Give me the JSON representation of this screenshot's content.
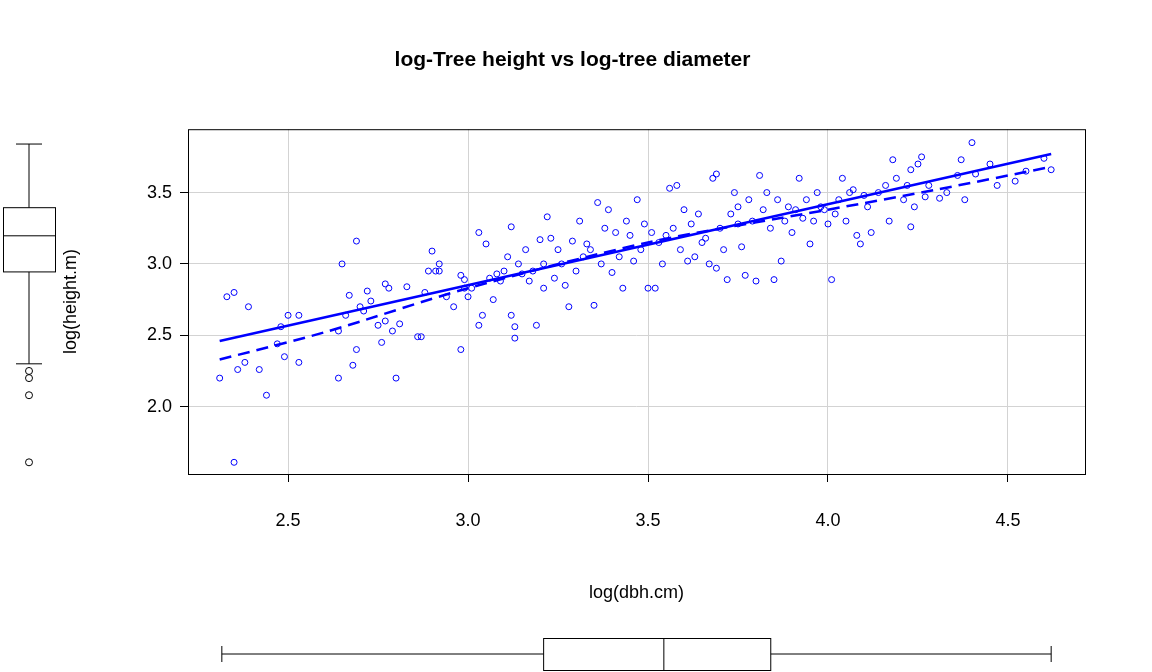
{
  "chart_data": {
    "type": "scatter",
    "title": "log-Tree height vs log-tree diameter",
    "x_label": "log(dbh.cm)",
    "y_label": "log(height.m)",
    "xlim": [
      2.222,
      4.714
    ],
    "ylim": [
      1.528,
      3.944
    ],
    "xticks": [
      2.5,
      {
        "value": 3,
        "label": "3.0"
      },
      3.5,
      {
        "value": 4,
        "label": "4.0"
      },
      4.5
    ],
    "yticks": [
      {
        "value": 2,
        "label": "2.0"
      },
      2.5,
      {
        "value": 3,
        "label": "3.0"
      },
      3.5
    ],
    "grid": true,
    "series": [
      {
        "type": "scatter",
        "marker": "circle",
        "color": "#0000ff",
        "x": [
          2.31,
          2.33,
          2.35,
          2.35,
          2.36,
          2.38,
          2.39,
          2.42,
          2.44,
          2.47,
          2.48,
          2.49,
          2.5,
          2.53,
          2.53,
          2.64,
          2.64,
          2.65,
          2.66,
          2.67,
          2.68,
          2.69,
          2.69,
          2.7,
          2.71,
          2.72,
          2.73,
          2.75,
          2.76,
          2.77,
          2.77,
          2.78,
          2.79,
          2.8,
          2.81,
          2.83,
          2.86,
          2.87,
          2.88,
          2.89,
          2.9,
          2.91,
          2.92,
          2.92,
          2.94,
          2.96,
          2.98,
          2.98,
          2.99,
          2.99,
          3.0,
          3.01,
          3.03,
          3.03,
          3.04,
          3.05,
          3.06,
          3.07,
          3.08,
          3.09,
          3.1,
          3.11,
          3.12,
          3.12,
          3.13,
          3.13,
          3.14,
          3.15,
          3.16,
          3.17,
          3.18,
          3.19,
          3.2,
          3.21,
          3.21,
          3.22,
          3.23,
          3.24,
          3.25,
          3.26,
          3.27,
          3.28,
          3.29,
          3.3,
          3.31,
          3.32,
          3.33,
          3.34,
          3.35,
          3.36,
          3.37,
          3.38,
          3.39,
          3.4,
          3.41,
          3.42,
          3.43,
          3.44,
          3.45,
          3.46,
          3.47,
          3.48,
          3.49,
          3.5,
          3.51,
          3.52,
          3.53,
          3.54,
          3.55,
          3.56,
          3.57,
          3.58,
          3.59,
          3.6,
          3.61,
          3.62,
          3.63,
          3.64,
          3.65,
          3.66,
          3.67,
          3.68,
          3.69,
          3.69,
          3.7,
          3.71,
          3.72,
          3.73,
          3.74,
          3.75,
          3.75,
          3.76,
          3.77,
          3.78,
          3.79,
          3.8,
          3.81,
          3.82,
          3.83,
          3.84,
          3.85,
          3.86,
          3.87,
          3.88,
          3.89,
          3.9,
          3.91,
          3.92,
          3.93,
          3.94,
          3.95,
          3.96,
          3.97,
          3.98,
          3.99,
          4.0,
          4.01,
          4.02,
          4.03,
          4.04,
          4.05,
          4.06,
          4.07,
          4.08,
          4.09,
          4.1,
          4.11,
          4.12,
          4.14,
          4.16,
          4.17,
          4.18,
          4.19,
          4.21,
          4.22,
          4.23,
          4.23,
          4.24,
          4.25,
          4.26,
          4.27,
          4.28,
          4.31,
          4.33,
          4.36,
          4.37,
          4.38,
          4.4,
          4.41,
          4.45,
          4.47,
          4.52,
          4.55,
          4.6,
          4.62
        ],
        "values": [
          2.2,
          2.77,
          2.8,
          1.61,
          2.26,
          2.31,
          2.7,
          2.26,
          2.08,
          2.44,
          2.56,
          2.35,
          2.64,
          2.31,
          2.64,
          2.2,
          2.53,
          3.0,
          2.64,
          2.78,
          2.29,
          2.4,
          3.16,
          2.7,
          2.67,
          2.81,
          2.74,
          2.57,
          2.45,
          2.86,
          2.6,
          2.83,
          2.53,
          2.2,
          2.58,
          2.84,
          2.49,
          2.49,
          2.8,
          2.95,
          3.09,
          2.95,
          3.0,
          2.95,
          2.77,
          2.7,
          2.92,
          2.4,
          2.89,
          2.83,
          2.77,
          2.83,
          2.57,
          3.22,
          2.64,
          3.14,
          2.9,
          2.75,
          2.93,
          2.88,
          2.95,
          3.05,
          2.64,
          3.26,
          2.48,
          2.56,
          3.0,
          2.93,
          3.1,
          2.88,
          2.95,
          2.57,
          3.17,
          3.0,
          2.83,
          3.33,
          3.18,
          2.9,
          3.1,
          3.0,
          2.85,
          2.7,
          3.16,
          2.95,
          3.3,
          3.05,
          3.14,
          3.1,
          2.71,
          3.43,
          3.0,
          3.25,
          3.38,
          2.94,
          3.22,
          3.05,
          2.83,
          3.3,
          3.2,
          3.02,
          3.45,
          3.1,
          3.28,
          2.83,
          3.22,
          2.83,
          3.15,
          3.0,
          3.2,
          3.53,
          3.25,
          3.55,
          3.1,
          3.38,
          3.02,
          3.28,
          3.05,
          3.35,
          3.15,
          3.18,
          3.0,
          3.6,
          2.97,
          3.63,
          3.25,
          3.1,
          2.89,
          3.35,
          3.5,
          3.4,
          3.28,
          3.12,
          2.92,
          3.45,
          3.3,
          2.88,
          3.62,
          3.38,
          3.5,
          3.25,
          2.89,
          3.45,
          3.02,
          3.3,
          3.4,
          3.22,
          3.38,
          3.6,
          3.32,
          3.45,
          3.14,
          3.3,
          3.5,
          3.4,
          3.38,
          3.28,
          2.89,
          3.35,
          3.45,
          3.6,
          3.3,
          3.5,
          3.52,
          3.2,
          3.14,
          3.48,
          3.4,
          3.22,
          3.5,
          3.55,
          3.3,
          3.73,
          3.6,
          3.45,
          3.55,
          3.26,
          3.66,
          3.4,
          3.7,
          3.75,
          3.47,
          3.55,
          3.46,
          3.5,
          3.62,
          3.73,
          3.45,
          3.85,
          3.63,
          3.7,
          3.55,
          3.58,
          3.65,
          3.74,
          3.66
        ]
      },
      {
        "type": "line",
        "line_style": "solid",
        "color": "#0000ff",
        "x": [
          2.31,
          4.62
        ],
        "values": [
          2.46,
          3.77
        ]
      },
      {
        "type": "line",
        "line_style": "dashed",
        "color": "#0000ff",
        "x": [
          2.31,
          2.6,
          3.0,
          3.5,
          4.0,
          4.3,
          4.62
        ],
        "values": [
          2.33,
          2.52,
          2.83,
          3.15,
          3.38,
          3.52,
          3.68
        ]
      }
    ],
    "x_box": {
      "min": 2.316,
      "q1": 3.21,
      "median": 3.544,
      "q3": 3.841,
      "max": 4.62,
      "outliers": []
    },
    "y_box": {
      "min": 2.3,
      "q1": 2.944,
      "median": 3.197,
      "q3": 3.394,
      "max": 3.84,
      "outliers": [
        2.25,
        2.2,
        2.08,
        1.61
      ]
    }
  }
}
